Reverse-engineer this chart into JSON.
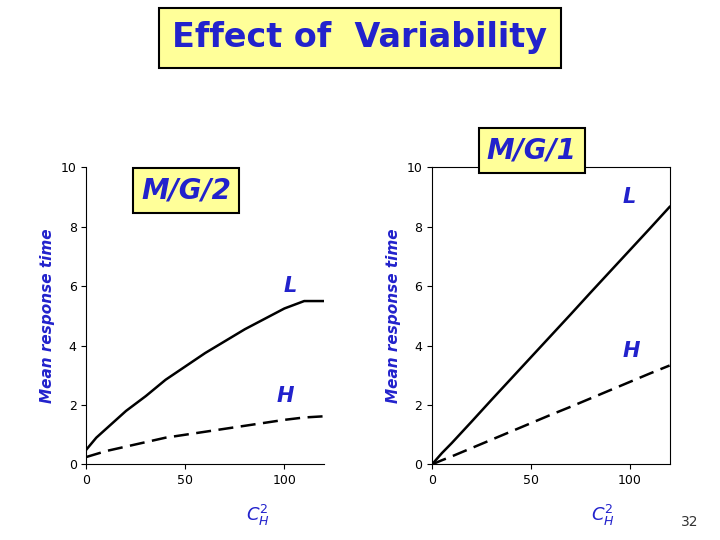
{
  "title": "Effect of  Variability",
  "title_color": "#2222CC",
  "title_fontsize": 24,
  "title_bbox_facecolor": "#FFFF99",
  "title_bbox_edgecolor": "#000000",
  "subplot_titles": [
    "M/G/2",
    "M/G/1"
  ],
  "subplot_title_fontsize": 20,
  "subplot_title_color": "#2222CC",
  "subplot_title_bbox_facecolor": "#FFFF99",
  "subplot_title_bbox_edgecolor": "#000000",
  "ylabel": "Mean response time",
  "ylabel_color": "#2222CC",
  "xlabel_color": "#2222CC",
  "label_fontsize": 11,
  "x": [
    0,
    5,
    10,
    20,
    30,
    40,
    50,
    60,
    70,
    80,
    90,
    100,
    110,
    120
  ],
  "mg2_L_y": [
    0.5,
    0.9,
    1.2,
    1.8,
    2.3,
    2.85,
    3.3,
    3.75,
    4.15,
    4.55,
    4.9,
    5.25,
    5.5,
    5.5
  ],
  "mg2_H_y": [
    0.25,
    0.35,
    0.45,
    0.6,
    0.75,
    0.9,
    1.0,
    1.1,
    1.2,
    1.3,
    1.4,
    1.5,
    1.58,
    1.62
  ],
  "mg1_L_y": [
    0.0,
    0.38,
    0.72,
    1.44,
    2.17,
    2.89,
    3.61,
    4.33,
    5.05,
    5.78,
    6.5,
    7.22,
    7.94,
    8.67
  ],
  "mg1_H_y": [
    0.0,
    0.14,
    0.27,
    0.55,
    0.83,
    1.11,
    1.39,
    1.67,
    1.94,
    2.22,
    2.5,
    2.78,
    3.06,
    3.33
  ],
  "line_color": "#000000",
  "line_width": 1.8,
  "ylim": [
    0,
    10
  ],
  "xlim": [
    0,
    120
  ],
  "yticks": [
    0,
    2,
    4,
    6,
    8,
    10
  ],
  "xticks": [
    0,
    50,
    100
  ],
  "label_L": "L",
  "label_H": "H",
  "annotation_color": "#2222CC",
  "annotation_fontsize": 15,
  "bg_color": "#FFFFFF",
  "page_number": "32",
  "page_number_fontsize": 10
}
